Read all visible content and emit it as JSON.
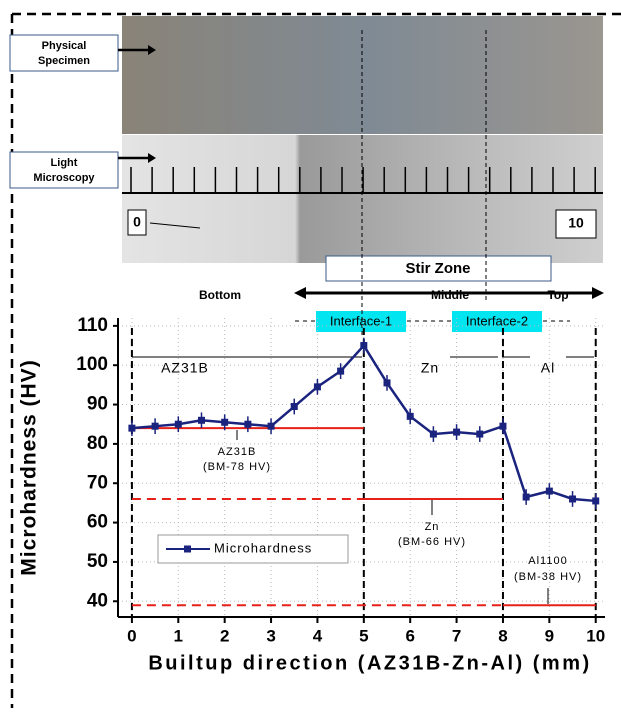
{
  "labels": {
    "physical": [
      "Physical",
      "Specimen"
    ],
    "light": [
      "Light",
      "Microscopy"
    ],
    "scale_start": "0",
    "scale_end": "10",
    "stir_zone": "Stir Zone",
    "bottom": "Bottom",
    "middle": "Middle",
    "top": "Top",
    "interface1": "Interface-1",
    "interface2": "Interface-2"
  },
  "chart_data": {
    "type": "line",
    "y_label": "Microhardness (HV)",
    "x_label": "Builtup direction (AZ31B-Zn-Al) (mm)",
    "x": [
      0,
      0.5,
      1,
      1.5,
      2,
      2.5,
      3,
      3.5,
      4,
      4.5,
      5,
      5.5,
      6,
      6.5,
      7,
      7.5,
      8,
      8.5,
      9,
      9.5,
      10
    ],
    "series": [
      {
        "name": "Microhardness",
        "color": "#1a237e",
        "values": [
          84,
          84.5,
          85,
          86,
          85.5,
          85,
          84.5,
          89.5,
          94.5,
          98.5,
          105,
          95.5,
          87,
          82.5,
          83,
          82.5,
          84.5,
          66.5,
          68,
          66,
          65.5
        ],
        "errors": [
          2,
          2,
          2,
          2,
          2,
          2,
          2,
          2,
          2,
          2,
          2,
          2,
          2,
          2,
          2,
          2,
          2,
          2,
          2,
          2,
          2
        ]
      }
    ],
    "xlim": [
      -0.3,
      10.2
    ],
    "ylim": [
      36,
      112
    ],
    "xticks": [
      0,
      1,
      2,
      3,
      4,
      5,
      6,
      7,
      8,
      9,
      10
    ],
    "yticks": [
      40,
      50,
      60,
      70,
      80,
      90,
      100,
      110
    ],
    "grid": true,
    "vertical_lines": [
      0,
      5,
      8,
      10
    ],
    "reference_lines": [
      {
        "y": 84,
        "x": [
          0,
          5
        ],
        "style": "solid",
        "color": "#e8201a"
      },
      {
        "y": 66,
        "x": [
          0,
          5
        ],
        "style": "dashed",
        "color": "#e8201a"
      },
      {
        "y": 66,
        "x": [
          5,
          8
        ],
        "style": "solid",
        "color": "#e8201a"
      },
      {
        "y": 39,
        "x": [
          0,
          8
        ],
        "style": "dashed",
        "color": "#e8201a"
      },
      {
        "y": 39,
        "x": [
          8,
          10
        ],
        "style": "solid",
        "color": "#e8201a"
      }
    ],
    "annotations": {
      "az31b": "AZ31B",
      "zn": "Zn",
      "al": "Al",
      "az31b_bm": [
        "AZ31B",
        "(BM-78 HV)"
      ],
      "zn_bm": [
        "Zn",
        "(BM-66 HV)"
      ],
      "al_bm": [
        "Al1100",
        "(BM-38 HV)"
      ]
    }
  }
}
